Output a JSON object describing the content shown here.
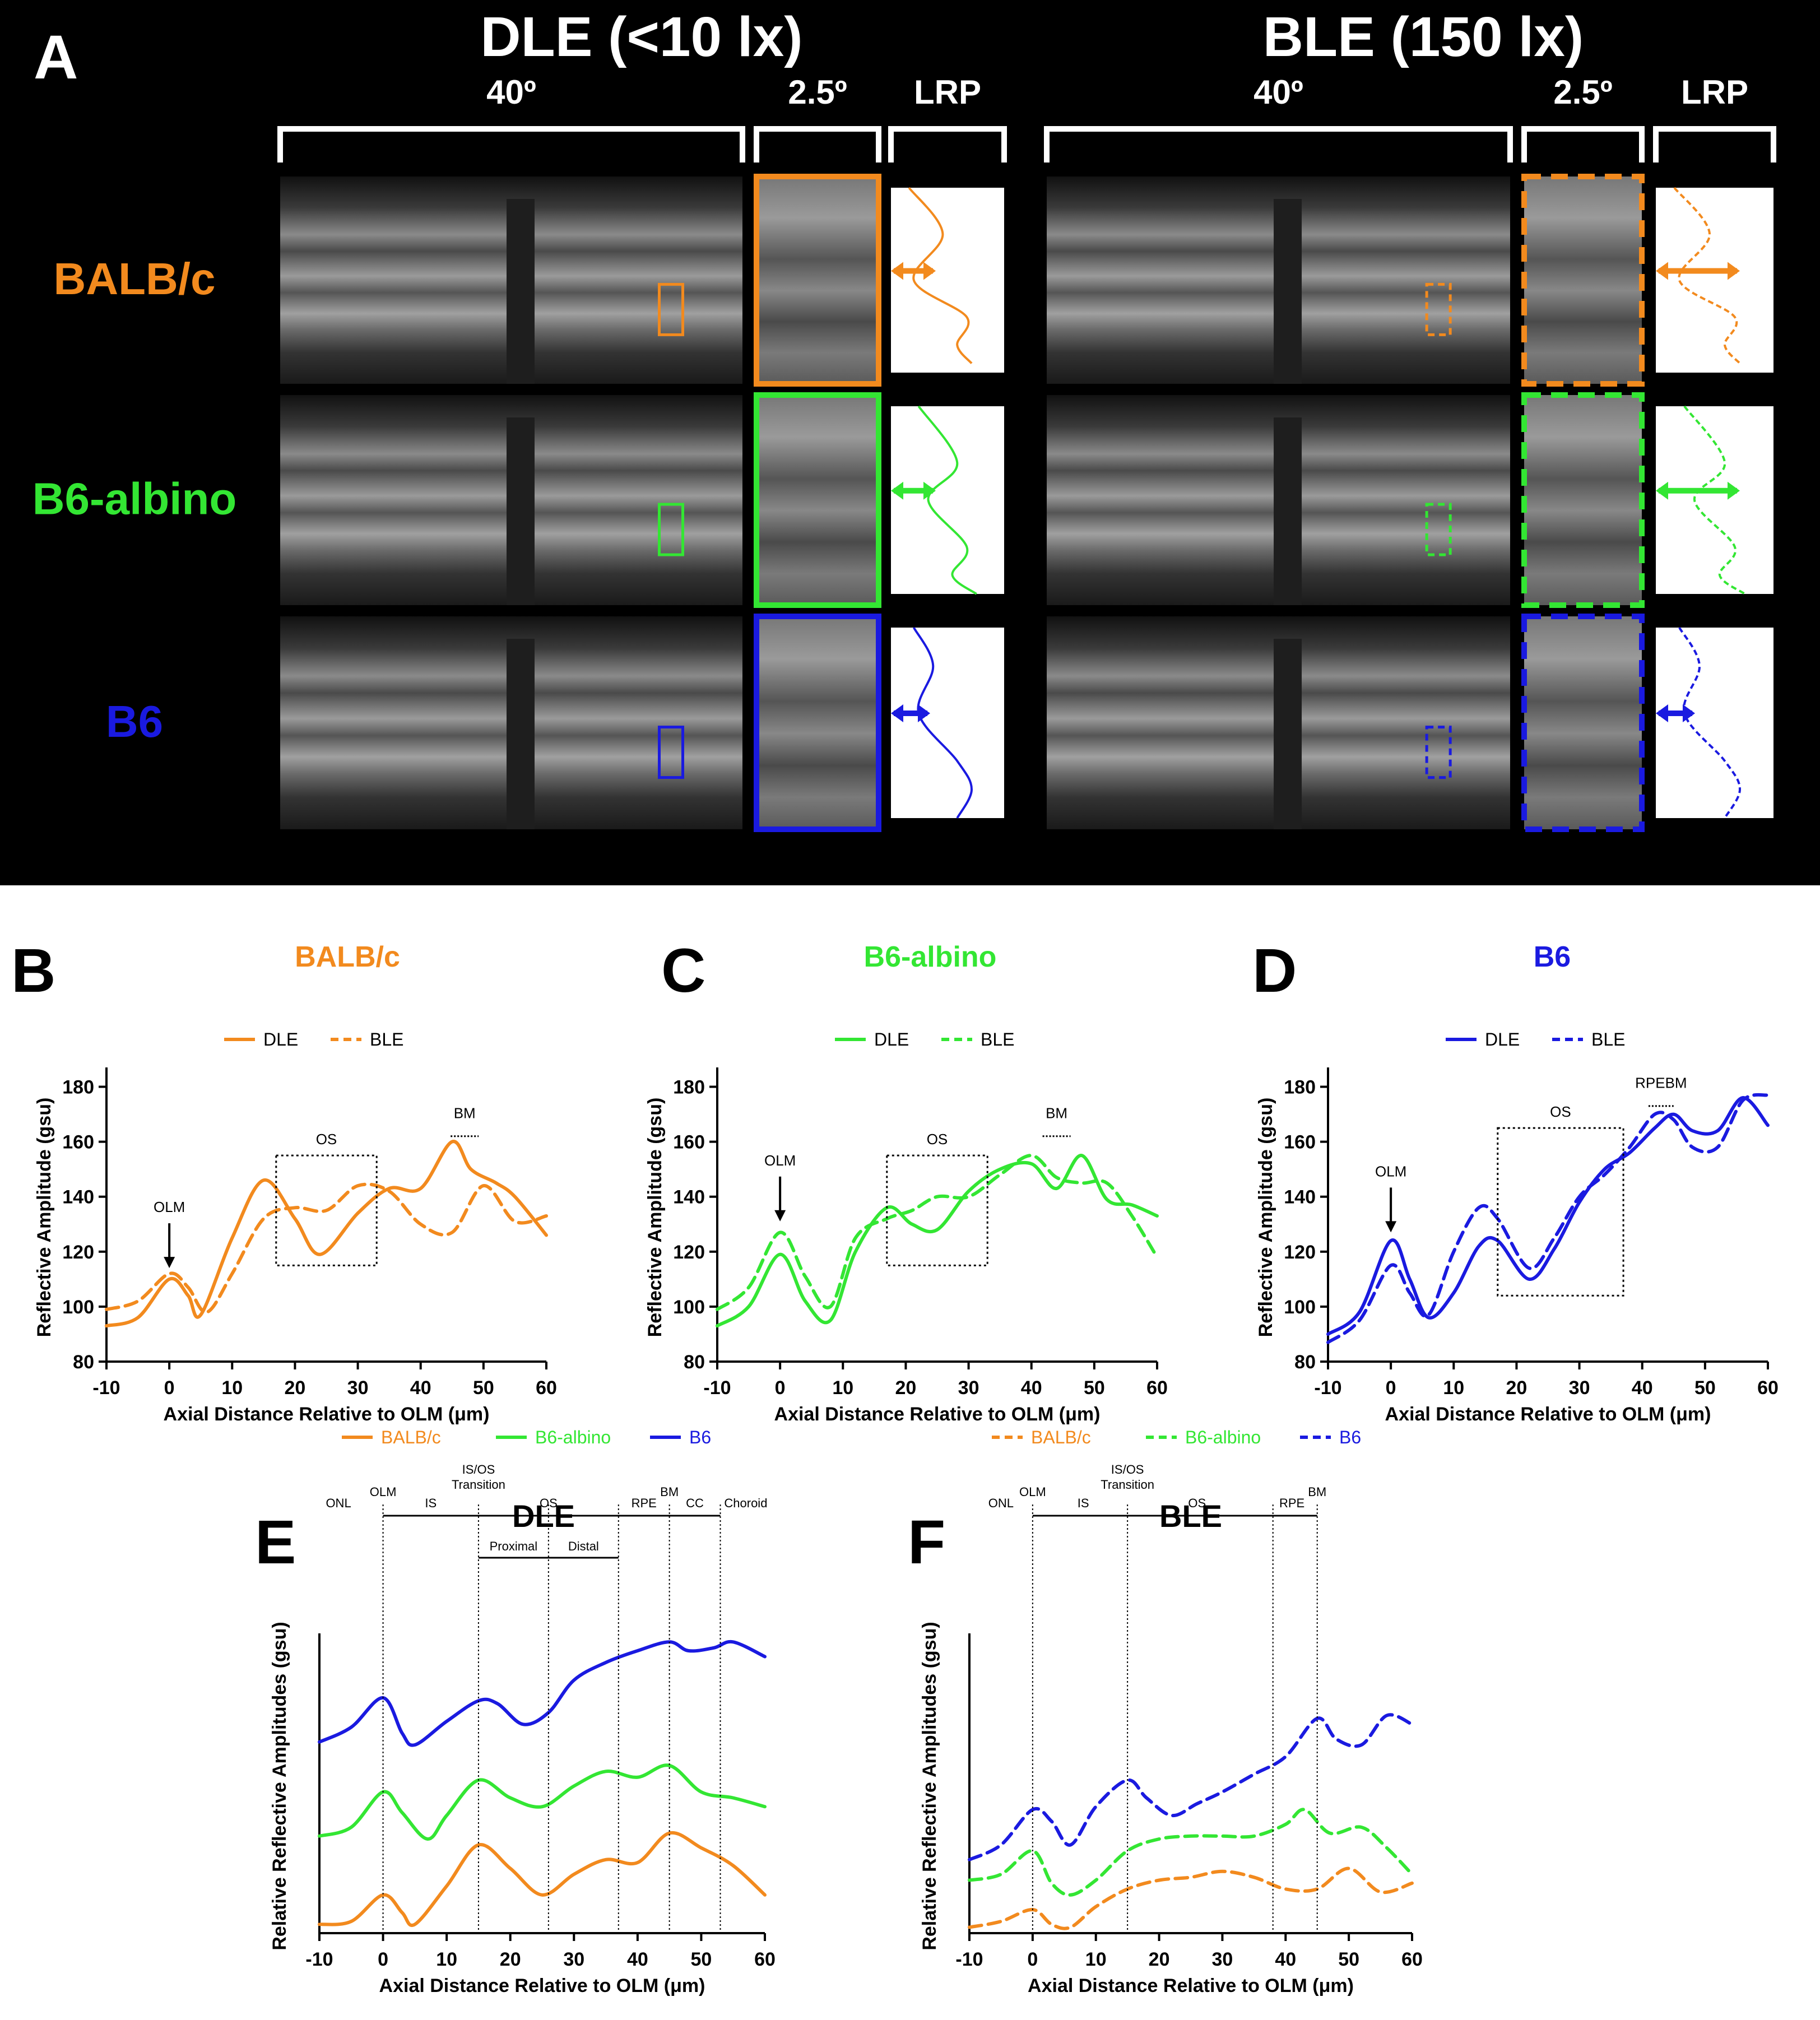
{
  "panelA": {
    "label": "A",
    "group_titles": [
      "DLE (<10 lx)",
      "BLE (150 lx)"
    ],
    "col_headers": [
      "40º",
      "2.5º",
      "LRP",
      "40º",
      "2.5º",
      "LRP"
    ],
    "row_labels": [
      "BALB/c",
      "B6-albino",
      "B6"
    ]
  },
  "colors": {
    "balb": "#F28A1E",
    "albino": "#33E633",
    "b6": "#1A1AE0"
  },
  "chart_data": [
    {
      "id": "B",
      "type": "line",
      "panel_label": "B",
      "title": "BALB/c",
      "title_color": "#F28A1E",
      "xlabel": "Axial Distance Relative to OLM (μm)",
      "ylabel": "Reflective Amplitude (gsu)",
      "xlim": [
        -10,
        60
      ],
      "ylim": [
        80,
        185
      ],
      "xticks": [
        "-10",
        "0",
        "10",
        "20",
        "30",
        "40",
        "50",
        "60"
      ],
      "yticks": [
        "80",
        "100",
        "120",
        "140",
        "160",
        "180"
      ],
      "legend": [
        "DLE",
        "BLE"
      ],
      "series": [
        {
          "name": "DLE",
          "style": "solid",
          "x": [
            -10,
            -5,
            0,
            3,
            5,
            10,
            15,
            20,
            24,
            30,
            35,
            40,
            45,
            48,
            52,
            55,
            60
          ],
          "y": [
            93,
            96,
            110,
            104,
            97,
            125,
            146,
            132,
            119,
            134,
            143,
            143,
            160,
            150,
            145,
            140,
            126
          ]
        },
        {
          "name": "BLE",
          "style": "dashed",
          "x": [
            -10,
            -5,
            0,
            3,
            6,
            10,
            15,
            20,
            25,
            30,
            35,
            40,
            45,
            50,
            55,
            60
          ],
          "y": [
            99,
            102,
            112,
            107,
            98,
            112,
            132,
            136,
            135,
            144,
            142,
            130,
            127,
            144,
            131,
            133
          ]
        }
      ],
      "annotations": [
        "OLM",
        "OS",
        "BM"
      ]
    },
    {
      "id": "C",
      "type": "line",
      "panel_label": "C",
      "title": "B6-albino",
      "title_color": "#33E633",
      "xlabel": "Axial Distance Relative to OLM (μm)",
      "ylabel": "Reflective Amplitude (gsu)",
      "xlim": [
        -10,
        60
      ],
      "ylim": [
        80,
        185
      ],
      "xticks": [
        "-10",
        "0",
        "10",
        "20",
        "30",
        "40",
        "50",
        "60"
      ],
      "yticks": [
        "80",
        "100",
        "120",
        "140",
        "160",
        "180"
      ],
      "legend": [
        "DLE",
        "BLE"
      ],
      "series": [
        {
          "name": "DLE",
          "style": "solid",
          "x": [
            -10,
            -5,
            0,
            4,
            8,
            12,
            17,
            21,
            25,
            30,
            35,
            40,
            44,
            48,
            52,
            56,
            60
          ],
          "y": [
            93,
            100,
            119,
            102,
            95,
            120,
            136,
            130,
            128,
            142,
            150,
            152,
            143,
            155,
            139,
            137,
            133
          ]
        },
        {
          "name": "BLE",
          "style": "dashed",
          "x": [
            -10,
            -5,
            0,
            4,
            8,
            12,
            17,
            21,
            25,
            30,
            35,
            40,
            44,
            48,
            52,
            56,
            60
          ],
          "y": [
            99,
            107,
            127,
            111,
            100,
            125,
            132,
            135,
            140,
            140,
            148,
            155,
            147,
            145,
            145,
            133,
            118
          ]
        }
      ],
      "annotations": [
        "OLM",
        "OS",
        "BM"
      ]
    },
    {
      "id": "D",
      "type": "line",
      "panel_label": "D",
      "title": "B6",
      "title_color": "#1A1AE0",
      "xlabel": "Axial Distance Relative to OLM (μm)",
      "ylabel": "Reflective Amplitude (gsu)",
      "xlim": [
        -10,
        60
      ],
      "ylim": [
        80,
        185
      ],
      "xticks": [
        "-10",
        "0",
        "10",
        "20",
        "30",
        "40",
        "50",
        "60"
      ],
      "yticks": [
        "80",
        "100",
        "120",
        "140",
        "160",
        "180"
      ],
      "legend": [
        "DLE",
        "BLE"
      ],
      "series": [
        {
          "name": "DLE",
          "style": "solid",
          "x": [
            -10,
            -5,
            0,
            3,
            6,
            10,
            14,
            17,
            22,
            26,
            30,
            34,
            38,
            42,
            45,
            48,
            52,
            56,
            60
          ],
          "y": [
            90,
            98,
            124,
            110,
            96,
            105,
            122,
            124,
            110,
            121,
            138,
            150,
            156,
            165,
            170,
            164,
            164,
            176,
            166
          ]
        },
        {
          "name": "BLE",
          "style": "dashed",
          "x": [
            -10,
            -5,
            0,
            3,
            6,
            10,
            14,
            17,
            22,
            26,
            30,
            34,
            38,
            42,
            45,
            48,
            52,
            56,
            60
          ],
          "y": [
            87,
            95,
            115,
            105,
            97,
            120,
            136,
            132,
            114,
            125,
            140,
            148,
            158,
            170,
            168,
            158,
            158,
            175,
            177
          ]
        }
      ],
      "annotations": [
        "OLM",
        "OS",
        "RPE",
        "BM"
      ]
    },
    {
      "id": "E",
      "type": "line",
      "panel_label": "E",
      "title": "DLE",
      "xlabel": "Axial Distance Relative to OLM (μm)",
      "ylabel": "Relative Reflective Amplitudes (gsu)",
      "xlim": [
        -10,
        60
      ],
      "ylim": [
        0,
        100
      ],
      "xticks": [
        "-10",
        "0",
        "10",
        "20",
        "30",
        "40",
        "50",
        "60"
      ],
      "legend": [
        "BALB/c",
        "B6-albino",
        "B6"
      ],
      "series": [
        {
          "name": "BALB/c",
          "style": "solid",
          "x": [
            -10,
            -5,
            0,
            3,
            5,
            10,
            15,
            20,
            25,
            30,
            35,
            40,
            45,
            50,
            55,
            60
          ],
          "y": [
            3,
            4,
            13,
            7,
            3,
            16,
            30,
            22,
            13,
            20,
            25,
            24,
            34,
            29,
            23,
            13
          ]
        },
        {
          "name": "B6-albino",
          "style": "solid",
          "x": [
            -10,
            -5,
            0,
            3,
            7,
            10,
            15,
            20,
            25,
            30,
            35,
            40,
            45,
            50,
            55,
            60
          ],
          "y": [
            33,
            36,
            48,
            41,
            32,
            40,
            52,
            46,
            43,
            50,
            55,
            53,
            57,
            48,
            46,
            43
          ]
        },
        {
          "name": "B6",
          "style": "solid",
          "x": [
            -10,
            -5,
            0,
            3,
            5,
            10,
            15,
            18,
            22,
            26,
            30,
            35,
            40,
            45,
            48,
            52,
            55,
            60
          ],
          "y": [
            65,
            70,
            80,
            68,
            64,
            72,
            79,
            78,
            71,
            75,
            86,
            92,
            96,
            99,
            96,
            97,
            99,
            94
          ]
        }
      ],
      "annotations": [
        "ONL",
        "OLM",
        "IS",
        "IS/OS Transition",
        "OS",
        "Proximal",
        "Distal",
        "RPE",
        "BM",
        "CC",
        "Choroid"
      ]
    },
    {
      "id": "F",
      "type": "line",
      "panel_label": "F",
      "title": "BLE",
      "xlabel": "Axial Distance Relative to OLM (μm)",
      "ylabel": "Relative Reflective Amplitudes (gsu)",
      "xlim": [
        -10,
        60
      ],
      "ylim": [
        0,
        100
      ],
      "xticks": [
        "-10",
        "0",
        "10",
        "20",
        "30",
        "40",
        "50",
        "60"
      ],
      "legend": [
        "BALB/c",
        "B6-albino",
        "B6"
      ],
      "series": [
        {
          "name": "BALB/c",
          "style": "dashed",
          "x": [
            -10,
            -5,
            0,
            3,
            6,
            10,
            15,
            20,
            25,
            30,
            35,
            40,
            45,
            50,
            55,
            60
          ],
          "y": [
            2,
            4,
            8,
            3,
            2,
            9,
            15,
            18,
            19,
            21,
            19,
            15,
            15,
            22,
            14,
            17
          ]
        },
        {
          "name": "B6-albino",
          "style": "dashed",
          "x": [
            -10,
            -5,
            0,
            3,
            6,
            10,
            15,
            20,
            25,
            30,
            35,
            40,
            43,
            47,
            52,
            56,
            60
          ],
          "y": [
            18,
            20,
            28,
            17,
            13,
            18,
            28,
            32,
            33,
            33,
            33,
            37,
            42,
            34,
            36,
            29,
            20
          ]
        },
        {
          "name": "B6",
          "style": "dashed",
          "x": [
            -10,
            -5,
            0,
            3,
            6,
            10,
            15,
            18,
            22,
            26,
            30,
            35,
            40,
            45,
            48,
            52,
            56,
            60
          ],
          "y": [
            25,
            30,
            42,
            38,
            30,
            43,
            52,
            46,
            40,
            44,
            48,
            54,
            60,
            73,
            66,
            64,
            74,
            71
          ]
        }
      ],
      "annotations": [
        "ONL",
        "OLM",
        "IS",
        "IS/OS Transition",
        "OS",
        "RPE",
        "BM"
      ]
    }
  ]
}
